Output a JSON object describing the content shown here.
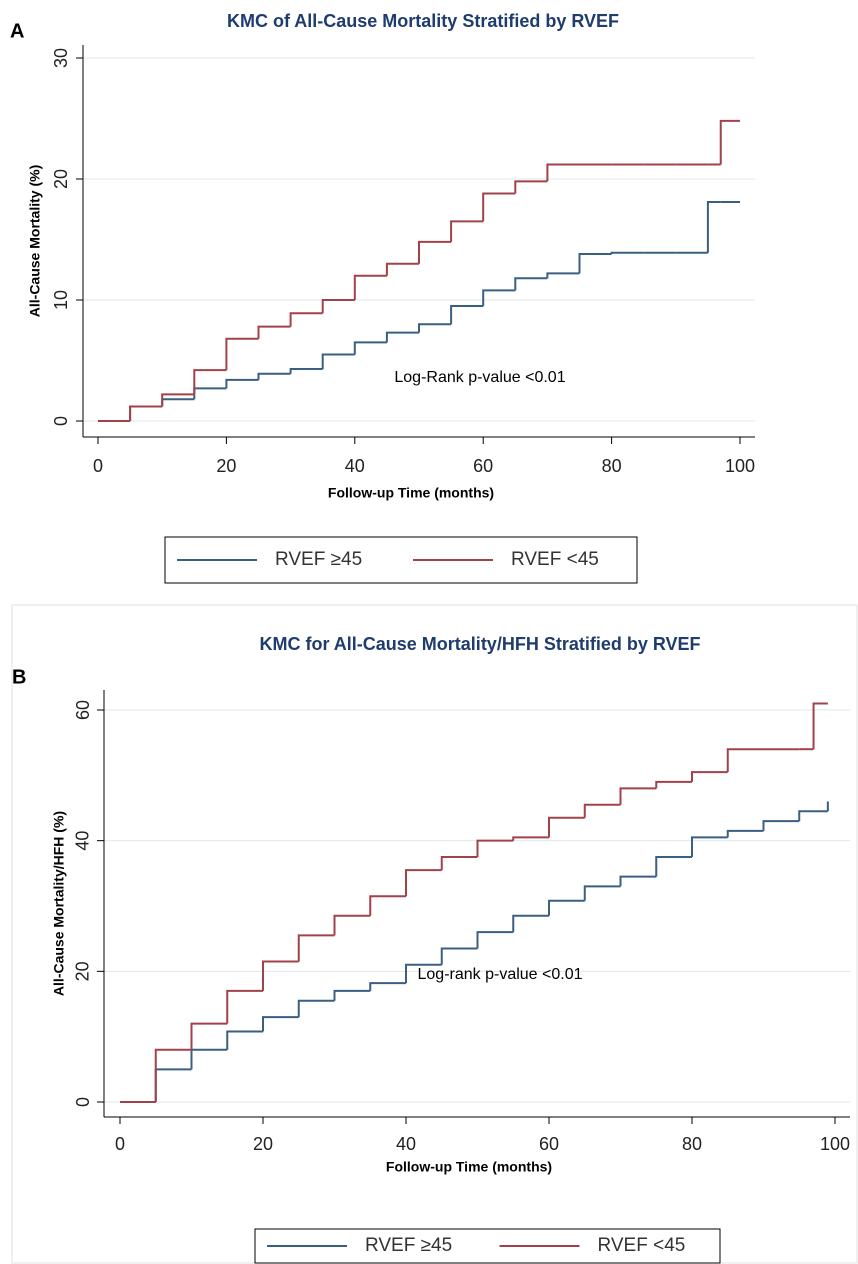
{
  "chart_data": [
    {
      "type": "line",
      "panel": "A",
      "title": "KMC of All-Cause Mortality Stratified by RVEF",
      "x_label": "Follow-up Time (months)",
      "y_label": "All-Cause Mortality (%)",
      "annotation": "Log-Rank p-value <0.01",
      "xlim": [
        0,
        100
      ],
      "ylim": [
        0,
        30
      ],
      "xticks": [
        0,
        20,
        40,
        60,
        80,
        100
      ],
      "yticks": [
        0,
        10,
        20,
        30
      ],
      "grid": true,
      "x": [
        0,
        5,
        10,
        15,
        20,
        25,
        30,
        35,
        40,
        45,
        50,
        55,
        60,
        65,
        70,
        75,
        80,
        85,
        90,
        95,
        97,
        100
      ],
      "series": [
        {
          "name": "RVEF ≥45",
          "color": "#3b5f82",
          "values": [
            0,
            1.2,
            1.8,
            2.7,
            3.4,
            3.9,
            4.3,
            5.5,
            6.5,
            7.3,
            8.0,
            9.5,
            10.8,
            11.8,
            12.2,
            13.8,
            13.9,
            13.9,
            13.9,
            18.1,
            18.1,
            18.1
          ]
        },
        {
          "name": "RVEF <45",
          "color": "#a2414a",
          "values": [
            0,
            1.2,
            2.2,
            4.2,
            6.8,
            7.8,
            8.9,
            10.0,
            12.0,
            13.0,
            14.8,
            16.5,
            18.8,
            19.8,
            21.2,
            21.2,
            21.2,
            21.2,
            21.2,
            21.2,
            24.8,
            24.8
          ]
        }
      ]
    },
    {
      "type": "line",
      "panel": "B",
      "title": "KMC for All-Cause Mortality/HFH Stratified by RVEF",
      "x_label": "Follow-up Time (months)",
      "y_label": "All-Cause Mortality/HFH (%)",
      "annotation": "Log-rank p-value <0.01",
      "xlim": [
        0,
        100
      ],
      "ylim": [
        0,
        60
      ],
      "xticks": [
        0,
        20,
        40,
        60,
        80,
        100
      ],
      "yticks": [
        0,
        20,
        40,
        60
      ],
      "grid": true,
      "x": [
        0,
        5,
        10,
        15,
        20,
        25,
        30,
        35,
        40,
        45,
        50,
        55,
        60,
        65,
        70,
        75,
        80,
        85,
        90,
        95,
        97,
        99
      ],
      "series": [
        {
          "name": "RVEF ≥45",
          "color": "#3b5f82",
          "values": [
            0,
            5,
            8,
            10.8,
            13,
            15.5,
            17,
            18.2,
            21,
            23.5,
            26,
            28.5,
            30.8,
            33,
            34.5,
            37.5,
            40.5,
            41.5,
            43,
            44.5,
            44.5,
            46
          ]
        },
        {
          "name": "RVEF <45",
          "color": "#a2414a",
          "values": [
            0,
            8,
            12,
            17,
            21.5,
            25.5,
            28.5,
            31.5,
            35.5,
            37.5,
            40,
            40.5,
            43.5,
            45.5,
            48,
            49,
            50.5,
            54,
            54,
            54,
            61,
            61
          ]
        }
      ]
    }
  ]
}
